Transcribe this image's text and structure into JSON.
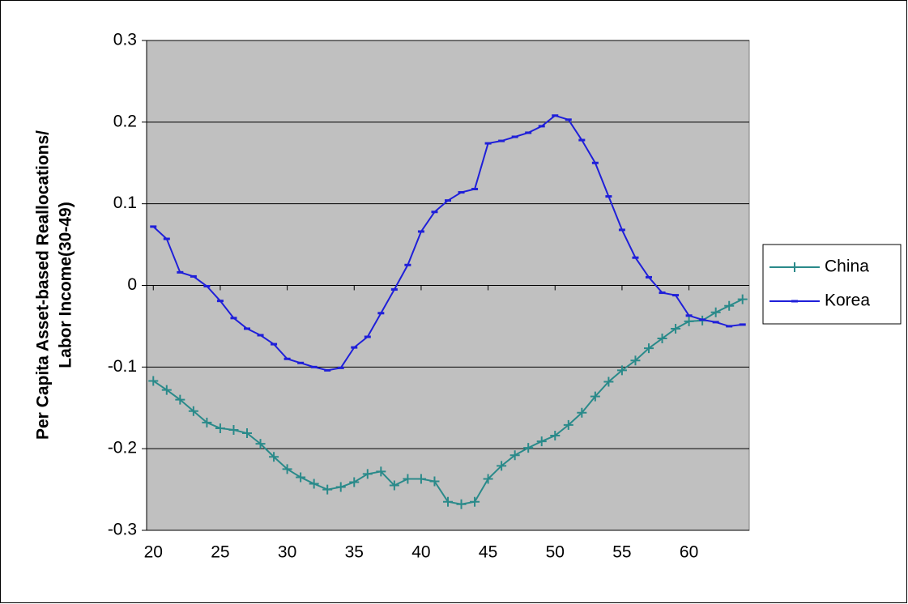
{
  "chart_data": {
    "type": "line",
    "y_label": [
      "Per Capita Asset-based Reallocations/",
      "Labor Income(30-49)"
    ],
    "x": [
      20,
      21,
      22,
      23,
      24,
      25,
      26,
      27,
      28,
      29,
      30,
      31,
      32,
      33,
      34,
      35,
      36,
      37,
      38,
      39,
      40,
      41,
      42,
      43,
      44,
      45,
      46,
      47,
      48,
      49,
      50,
      51,
      52,
      53,
      54,
      55,
      56,
      57,
      58,
      59,
      60,
      61,
      62,
      63,
      64
    ],
    "xlim": [
      19.5,
      64.5
    ],
    "xticks": [
      20,
      25,
      30,
      35,
      40,
      45,
      50,
      55,
      60
    ],
    "ylim": [
      -0.3,
      0.3
    ],
    "yticks": [
      0.3,
      0.2,
      0.1,
      0,
      -0.1,
      -0.2,
      -0.3
    ],
    "grid": true,
    "legend": "right",
    "series": [
      {
        "name": "China",
        "color": "#2a8a8a",
        "marker": "plus",
        "values": [
          -0.117,
          -0.128,
          -0.14,
          -0.154,
          -0.168,
          -0.175,
          -0.177,
          -0.181,
          -0.194,
          -0.21,
          -0.225,
          -0.235,
          -0.243,
          -0.25,
          -0.247,
          -0.241,
          -0.231,
          -0.228,
          -0.245,
          -0.237,
          -0.237,
          -0.24,
          -0.265,
          -0.268,
          -0.265,
          -0.237,
          -0.221,
          -0.208,
          -0.199,
          -0.191,
          -0.184,
          -0.171,
          -0.156,
          -0.136,
          -0.118,
          -0.104,
          -0.092,
          -0.077,
          -0.065,
          -0.053,
          -0.044,
          -0.043,
          -0.033,
          -0.025,
          -0.017
        ]
      },
      {
        "name": "Korea",
        "color": "#1f1fd9",
        "marker": "dash",
        "values": [
          0.072,
          0.057,
          0.016,
          0.011,
          -0.001,
          -0.019,
          -0.04,
          -0.053,
          -0.061,
          -0.072,
          -0.09,
          -0.095,
          -0.1,
          -0.104,
          -0.101,
          -0.076,
          -0.063,
          -0.034,
          -0.005,
          0.025,
          0.066,
          0.09,
          0.104,
          0.114,
          0.118,
          0.174,
          0.177,
          0.182,
          0.187,
          0.195,
          0.208,
          0.203,
          0.178,
          0.15,
          0.109,
          0.068,
          0.034,
          0.01,
          -0.009,
          -0.012,
          -0.037,
          -0.042,
          -0.045,
          -0.05,
          -0.048
        ]
      }
    ]
  }
}
